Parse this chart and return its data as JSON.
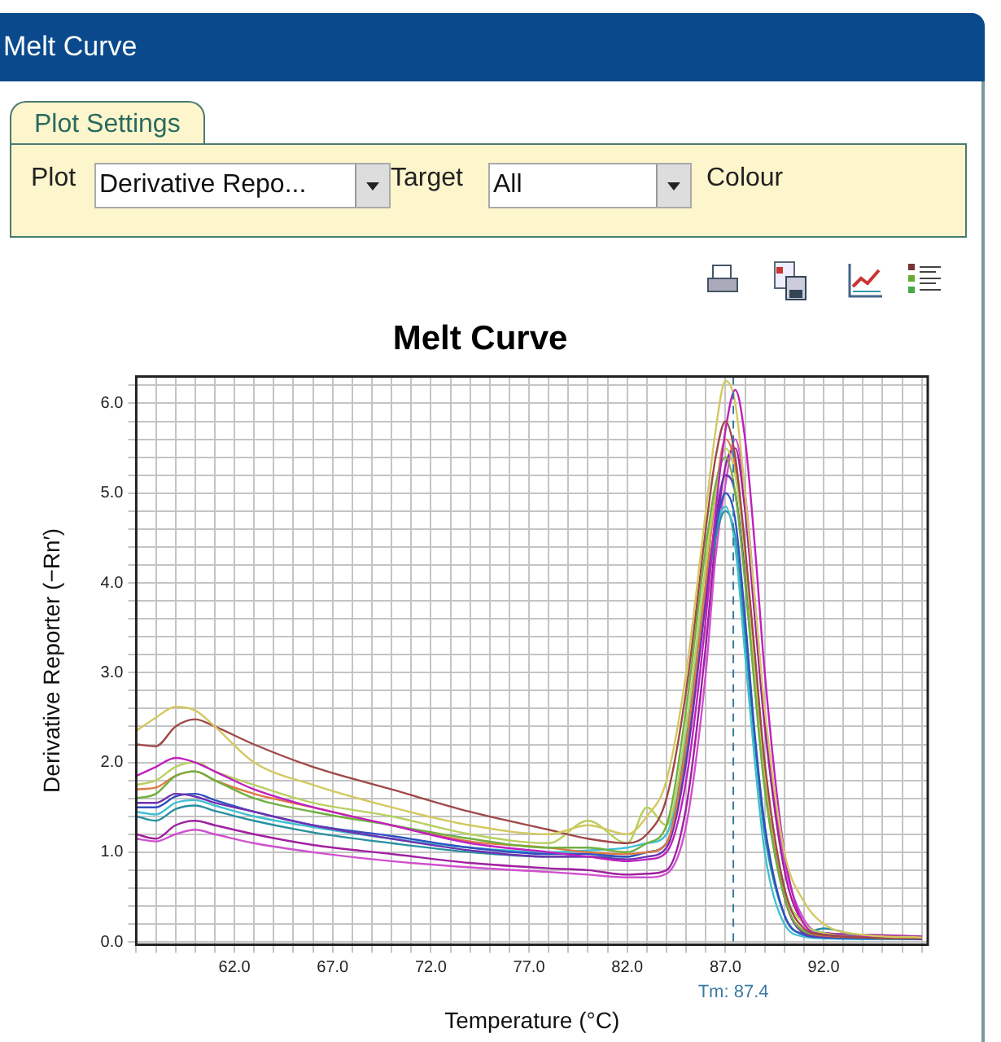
{
  "chart_data": {
    "type": "line",
    "title": "Melt Curve",
    "xlabel": "Temperature (°C)",
    "ylabel": "Derivative Reporter (−Rn′)",
    "annotations": [
      "Melt Curve",
      "Plot Settings",
      "Plot",
      "Derivative Repo...",
      "Target",
      "All",
      "Colour"
    ],
    "x": [
      57,
      58,
      59,
      60,
      61,
      63,
      66,
      70,
      74,
      78,
      80,
      82,
      83,
      84,
      85,
      86,
      86.5,
      87,
      87.5,
      88,
      88.5,
      89,
      90,
      91,
      92,
      94,
      97
    ],
    "xlim": [
      57,
      97.3
    ],
    "ylim": [
      -0.03,
      6.3
    ],
    "xticks": [
      {
        "value": 57,
        "label": null
      },
      {
        "value": 58,
        "label": null
      },
      {
        "value": 59,
        "label": null
      },
      {
        "value": 60,
        "label": null
      },
      {
        "value": 61,
        "label": null
      },
      {
        "value": 62,
        "label": "62.0"
      },
      {
        "value": 63,
        "label": null
      },
      {
        "value": 64,
        "label": null
      },
      {
        "value": 65,
        "label": null
      },
      {
        "value": 66,
        "label": null
      },
      {
        "value": 67,
        "label": "67.0"
      },
      {
        "value": 68,
        "label": null
      },
      {
        "value": 69,
        "label": null
      },
      {
        "value": 70,
        "label": null
      },
      {
        "value": 71,
        "label": null
      },
      {
        "value": 72,
        "label": "72.0"
      },
      {
        "value": 73,
        "label": null
      },
      {
        "value": 74,
        "label": null
      },
      {
        "value": 75,
        "label": null
      },
      {
        "value": 76,
        "label": null
      },
      {
        "value": 77,
        "label": "77.0"
      },
      {
        "value": 78,
        "label": null
      },
      {
        "value": 79,
        "label": null
      },
      {
        "value": 80,
        "label": null
      },
      {
        "value": 81,
        "label": null
      },
      {
        "value": 82,
        "label": "82.0"
      },
      {
        "value": 83,
        "label": null
      },
      {
        "value": 84,
        "label": null
      },
      {
        "value": 85,
        "label": null
      },
      {
        "value": 86,
        "label": null
      },
      {
        "value": 87,
        "label": "87.0"
      },
      {
        "value": 88,
        "label": null
      },
      {
        "value": 89,
        "label": null
      },
      {
        "value": 90,
        "label": null
      },
      {
        "value": 91,
        "label": null
      },
      {
        "value": 92,
        "label": "92.0"
      },
      {
        "value": 93,
        "label": null
      },
      {
        "value": 94,
        "label": null
      },
      {
        "value": 95,
        "label": null
      },
      {
        "value": 96,
        "label": null
      },
      {
        "value": 97,
        "label": null
      }
    ],
    "yticks": [
      {
        "value": 0,
        "label": "0.0"
      },
      {
        "value": 0.2,
        "label": null
      },
      {
        "value": 0.4,
        "label": null
      },
      {
        "value": 0.6,
        "label": null
      },
      {
        "value": 0.8,
        "label": null
      },
      {
        "value": 1,
        "label": "1.0"
      },
      {
        "value": 1.2,
        "label": null
      },
      {
        "value": 1.4,
        "label": null
      },
      {
        "value": 1.6,
        "label": null
      },
      {
        "value": 1.8,
        "label": null
      },
      {
        "value": 2,
        "label": "2.0"
      },
      {
        "value": 2.2,
        "label": null
      },
      {
        "value": 2.4,
        "label": null
      },
      {
        "value": 2.6,
        "label": null
      },
      {
        "value": 2.8,
        "label": null
      },
      {
        "value": 3,
        "label": "3.0"
      },
      {
        "value": 3.2,
        "label": null
      },
      {
        "value": 3.4,
        "label": null
      },
      {
        "value": 3.6,
        "label": null
      },
      {
        "value": 3.8,
        "label": null
      },
      {
        "value": 4,
        "label": "4.0"
      },
      {
        "value": 4.2,
        "label": null
      },
      {
        "value": 4.4,
        "label": null
      },
      {
        "value": 4.6,
        "label": null
      },
      {
        "value": 4.8,
        "label": null
      },
      {
        "value": 5,
        "label": "5.0"
      },
      {
        "value": 5.2,
        "label": null
      },
      {
        "value": 5.4,
        "label": null
      },
      {
        "value": 5.6,
        "label": null
      },
      {
        "value": 5.8,
        "label": null
      },
      {
        "value": 6,
        "label": "6.0"
      },
      {
        "value": 6.2,
        "label": null
      }
    ],
    "grid": true,
    "legend": false,
    "marker": "none",
    "line_style": "solid",
    "ref_lines": [
      {
        "axis": "x",
        "value": 87.4,
        "label": "Tm: 87.4",
        "color": "#3a7aa0",
        "line_style": "dashed"
      }
    ],
    "series": [
      {
        "color": "#d4c860",
        "values": [
          2.35,
          2.5,
          2.62,
          2.58,
          2.4,
          2.0,
          1.75,
          1.5,
          1.3,
          1.2,
          1.3,
          1.2,
          1.4,
          1.8,
          3.0,
          4.8,
          5.7,
          6.25,
          6.0,
          5.0,
          3.8,
          2.6,
          1.0,
          0.45,
          0.2,
          0.08,
          0.05
        ]
      },
      {
        "color": "#a04848",
        "values": [
          2.2,
          2.18,
          2.4,
          2.48,
          2.4,
          2.2,
          1.95,
          1.7,
          1.45,
          1.25,
          1.15,
          1.1,
          1.2,
          1.6,
          2.8,
          4.6,
          5.4,
          5.8,
          5.4,
          4.4,
          3.2,
          2.0,
          0.6,
          0.15,
          0.08,
          0.05,
          0.04
        ]
      },
      {
        "color": "#c020c0",
        "values": [
          1.85,
          1.95,
          2.05,
          2.0,
          1.9,
          1.7,
          1.5,
          1.3,
          1.1,
          1.0,
          0.95,
          0.9,
          0.92,
          1.0,
          1.8,
          3.6,
          4.8,
          5.7,
          6.15,
          5.6,
          4.4,
          3.0,
          1.0,
          0.2,
          0.08,
          0.06,
          0.05
        ]
      },
      {
        "color": "#70b040",
        "values": [
          1.6,
          1.65,
          1.85,
          1.9,
          1.8,
          1.6,
          1.45,
          1.3,
          1.15,
          1.05,
          1.05,
          1.0,
          1.1,
          1.3,
          2.6,
          4.4,
          5.1,
          5.4,
          5.0,
          4.0,
          2.8,
          1.7,
          0.5,
          0.12,
          0.08,
          0.05,
          0.04
        ]
      },
      {
        "color": "#b8d060",
        "values": [
          1.75,
          1.8,
          1.95,
          2.0,
          1.9,
          1.75,
          1.55,
          1.4,
          1.2,
          1.1,
          1.35,
          1.1,
          1.5,
          1.3,
          2.4,
          4.2,
          5.0,
          5.5,
          5.2,
          4.3,
          3.0,
          1.9,
          0.6,
          0.2,
          0.1,
          0.06,
          0.04
        ]
      },
      {
        "color": "#e07840",
        "values": [
          1.7,
          1.72,
          1.85,
          1.9,
          1.8,
          1.65,
          1.5,
          1.3,
          1.12,
          1.05,
          1.0,
          0.98,
          1.0,
          1.1,
          2.2,
          4.0,
          5.0,
          5.6,
          5.3,
          4.3,
          3.0,
          1.8,
          0.5,
          0.12,
          0.07,
          0.05,
          0.04
        ]
      },
      {
        "color": "#7030b0",
        "values": [
          1.55,
          1.55,
          1.65,
          1.62,
          1.55,
          1.45,
          1.3,
          1.15,
          1.02,
          0.95,
          0.95,
          0.92,
          0.95,
          1.05,
          2.0,
          3.8,
          4.7,
          5.2,
          5.0,
          4.1,
          2.9,
          1.8,
          0.5,
          0.1,
          0.06,
          0.05,
          0.04
        ]
      },
      {
        "color": "#3050c0",
        "values": [
          1.5,
          1.5,
          1.62,
          1.65,
          1.58,
          1.45,
          1.3,
          1.18,
          1.05,
          0.98,
          0.98,
          0.95,
          1.0,
          1.1,
          2.2,
          3.9,
          4.6,
          5.0,
          4.7,
          3.6,
          2.3,
          1.3,
          0.3,
          0.08,
          0.05,
          0.04,
          0.03
        ]
      },
      {
        "color": "#40c0d0",
        "values": [
          1.45,
          1.42,
          1.55,
          1.58,
          1.52,
          1.4,
          1.28,
          1.15,
          1.05,
          1.0,
          1.02,
          1.05,
          1.1,
          1.2,
          2.3,
          4.0,
          4.6,
          4.85,
          4.4,
          3.2,
          2.0,
          1.0,
          0.2,
          0.06,
          0.04,
          0.03,
          0.03
        ]
      },
      {
        "color": "#2890a0",
        "values": [
          1.4,
          1.35,
          1.48,
          1.52,
          1.46,
          1.35,
          1.22,
          1.1,
          1.0,
          0.95,
          0.95,
          0.95,
          1.0,
          1.1,
          2.1,
          3.8,
          4.5,
          4.8,
          4.5,
          3.4,
          2.2,
          1.2,
          0.3,
          0.1,
          0.15,
          0.06,
          0.04
        ]
      },
      {
        "color": "#a020a0",
        "values": [
          1.2,
          1.15,
          1.3,
          1.35,
          1.3,
          1.2,
          1.08,
          0.98,
          0.88,
          0.82,
          0.8,
          0.75,
          0.76,
          0.8,
          1.5,
          3.3,
          4.5,
          5.3,
          5.5,
          4.8,
          3.6,
          2.4,
          0.8,
          0.2,
          0.1,
          0.08,
          0.06
        ]
      },
      {
        "color": "#d050d0",
        "values": [
          1.15,
          1.12,
          1.2,
          1.25,
          1.2,
          1.1,
          1.0,
          0.9,
          0.83,
          0.78,
          0.75,
          0.72,
          0.72,
          0.76,
          1.3,
          3.0,
          4.3,
          5.1,
          5.6,
          5.0,
          3.8,
          2.5,
          0.9,
          0.25,
          0.1,
          0.08,
          0.06
        ]
      }
    ]
  }
}
